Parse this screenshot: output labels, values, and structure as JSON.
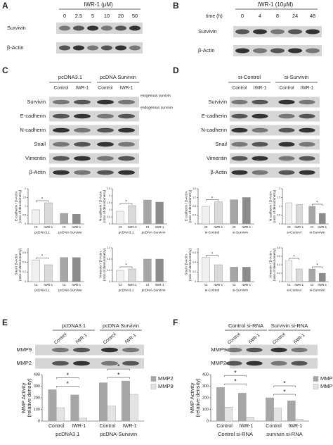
{
  "panels": {
    "A": {
      "label": "A",
      "treatment": "IWR-1 (μM)",
      "lanes": [
        "0",
        "2.5",
        "5",
        "10",
        "20",
        "50"
      ],
      "rows": [
        "Survivin",
        "β-Actin"
      ]
    },
    "B": {
      "label": "B",
      "treatment": "IWR-1 (10μM)",
      "axis_label": "time (h)",
      "lanes": [
        "0",
        "4",
        "8",
        "24",
        "48"
      ],
      "rows": [
        "Survivin",
        "β-Actin"
      ]
    },
    "C": {
      "label": "C",
      "groups": [
        "pcDNA3.1",
        "pcDNA Survivin"
      ],
      "lanes": [
        "Control",
        "IWR-1",
        "Control",
        "IWR-1"
      ],
      "rows": [
        "Survivin",
        "E-cadherin",
        "N-cadherin",
        "Snail",
        "Vimentin",
        "β-Actin"
      ],
      "annotations": [
        "exogenous survivin",
        "endogenous survivin"
      ]
    },
    "D": {
      "label": "D",
      "groups": [
        "si-Control",
        "si-Survivin"
      ],
      "lanes": [
        "Control",
        "IWR-1",
        "Control",
        "IWR-1"
      ],
      "rows": [
        "Survivin",
        "E-cadherin",
        "N-cadherin",
        "Snail",
        "Vimentin",
        "β-Actin"
      ]
    },
    "E": {
      "label": "E",
      "groups": [
        "pcDNA3.1",
        "pcDNA Survivin"
      ],
      "lanes": [
        "Control",
        "IWR-1",
        "Control",
        "IWR-1"
      ],
      "rows": [
        "MMP9",
        "MMP2"
      ]
    },
    "F": {
      "label": "F",
      "groups": [
        "Control si-RNA",
        "Survivin si-RNA"
      ],
      "lanes": [
        "Control",
        "IWR-1",
        "Control",
        "IWR-1"
      ],
      "rows": [
        "MMP9",
        "MMP2"
      ]
    }
  },
  "chart_data": [
    {
      "type": "bar",
      "ylabel": [
        "E-cadherin / β-Actin",
        "(ratio of densitometry)"
      ],
      "categories": [
        "Ct",
        "IWR-1",
        "Ct",
        "IWR-1"
      ],
      "groups": [
        "pcDNA3.1",
        "pcDNA-Survivin"
      ],
      "values": [
        0.8,
        1.2,
        0.6,
        0.55
      ],
      "colors": [
        "#f0f0f0",
        "#d9d9d9",
        "#a6a6a6",
        "#8c8c8c"
      ],
      "ylim": [
        0,
        2
      ],
      "yticks": [
        0,
        0.5,
        1,
        1.5,
        2
      ],
      "brackets": [
        [
          0,
          1
        ]
      ],
      "annotation": "*"
    },
    {
      "type": "bar",
      "ylabel": [
        "N-cadherin / β-Actin",
        "(ratio of densitometry)"
      ],
      "categories": [
        "Ct",
        "IWR-1",
        "Ct",
        "IWR-1"
      ],
      "groups": [
        "pcDNA3.1",
        "pcDNA-Survivin"
      ],
      "values": [
        0.9,
        1.3,
        1.7,
        1.55
      ],
      "colors": [
        "#f0f0f0",
        "#d9d9d9",
        "#a6a6a6",
        "#8c8c8c"
      ],
      "ylim": [
        0,
        2.5
      ],
      "yticks": [
        0,
        0.5,
        1,
        1.5,
        2,
        2.5
      ],
      "brackets": [
        [
          0,
          1
        ]
      ],
      "annotation": "*"
    },
    {
      "type": "bar",
      "ylabel": [
        "Snail / β-Actin",
        "(ratio of densitometry)"
      ],
      "categories": [
        "Ct",
        "IWR-1",
        "Ct",
        "IWR-1"
      ],
      "groups": [
        "pcDNA3.1",
        "pcDNA-Survivin"
      ],
      "values": [
        0.45,
        0.35,
        0.5,
        0.5
      ],
      "colors": [
        "#f0f0f0",
        "#d9d9d9",
        "#a6a6a6",
        "#8c8c8c"
      ],
      "ylim": [
        0,
        0.7
      ],
      "yticks": [
        0,
        0.2,
        0.4,
        0.6
      ],
      "brackets": [
        [
          0,
          1
        ]
      ],
      "annotation": "*"
    },
    {
      "type": "bar",
      "ylabel": [
        "Vimentin / β-Actin",
        "(ratio of densitometry)"
      ],
      "categories": [
        "Ct",
        "IWR-1",
        "Ct",
        "IWR-1"
      ],
      "groups": [
        "pcDNA3.1",
        "pcDNA-Survivin"
      ],
      "values": [
        0.4,
        0.45,
        0.8,
        0.8
      ],
      "colors": [
        "#f0f0f0",
        "#d9d9d9",
        "#a6a6a6",
        "#8c8c8c"
      ],
      "ylim": [
        0,
        1.2
      ],
      "yticks": [
        0,
        0.4,
        0.8,
        1.2
      ],
      "brackets": [
        [
          0,
          1
        ]
      ],
      "annotation": "*"
    },
    {
      "type": "bar",
      "ylabel": [
        "E-cadherin / β-Actin",
        "(ratio of densitometry)"
      ],
      "categories": [
        "Ct",
        "IWR-1",
        "Ct",
        "IWR-1"
      ],
      "groups": [
        "si-Control",
        "si-Survivin"
      ],
      "values": [
        0.8,
        1.0,
        1.1,
        1.2
      ],
      "colors": [
        "#f0f0f0",
        "#d9d9d9",
        "#a6a6a6",
        "#8c8c8c"
      ],
      "ylim": [
        0,
        1.6
      ],
      "yticks": [
        0,
        0.4,
        0.8,
        1.2,
        1.6
      ],
      "brackets": [
        [
          0,
          1
        ]
      ],
      "annotation": "*"
    },
    {
      "type": "bar",
      "ylabel": [
        "N cadherin / β-Actin",
        "(ratio of densitometry)"
      ],
      "categories": [
        "Ct",
        "IWR-1",
        "Ct",
        "IWR-1"
      ],
      "groups": [
        "si-Control",
        "si-Survivin"
      ],
      "values": [
        1.2,
        1.1,
        1.0,
        0.6
      ],
      "colors": [
        "#f0f0f0",
        "#d9d9d9",
        "#a6a6a6",
        "#8c8c8c"
      ],
      "ylim": [
        0,
        2
      ],
      "yticks": [
        0,
        0.5,
        1,
        1.5,
        2
      ],
      "brackets": [
        [
          2,
          3
        ]
      ],
      "annotation": "*"
    },
    {
      "type": "bar",
      "ylabel": [
        "Snail / β-Actin",
        "(ratio of densitometry)"
      ],
      "categories": [
        "Ct",
        "IWR-1",
        "Ct",
        "IWR-1"
      ],
      "groups": [
        "si-Control",
        "si-Survivin"
      ],
      "values": [
        0.5,
        0.35,
        0.3,
        0.3
      ],
      "colors": [
        "#f0f0f0",
        "#d9d9d9",
        "#a6a6a6",
        "#8c8c8c"
      ],
      "ylim": [
        0,
        0.7
      ],
      "yticks": [
        0,
        0.2,
        0.4,
        0.6
      ],
      "brackets": [
        [
          0,
          1
        ]
      ],
      "annotation": "*"
    },
    {
      "type": "bar",
      "ylabel": [
        "Vimentin / β-Actin",
        "(ratio of densitometry)"
      ],
      "categories": [
        "Ct",
        "IWR-1",
        "Ct",
        "IWR-1"
      ],
      "groups": [
        "si-Control",
        "si-Survivin"
      ],
      "values": [
        0.5,
        0.3,
        0.3,
        0.2
      ],
      "colors": [
        "#f0f0f0",
        "#d9d9d9",
        "#a6a6a6",
        "#8c8c8c"
      ],
      "ylim": [
        0,
        0.8
      ],
      "yticks": [
        0,
        0.2,
        0.4,
        0.6,
        0.8
      ],
      "brackets": [
        [
          0,
          1
        ],
        [
          2,
          3
        ]
      ],
      "annotation": "*"
    },
    {
      "type": "grouped_bar",
      "ylabel": [
        "MMP Activity",
        "(relative density)"
      ],
      "categories": [
        "Control",
        "IWR-1",
        "Control",
        "IWR-1"
      ],
      "groups": [
        "pcDNA3.1",
        "pcDNA-Survivin"
      ],
      "series": [
        {
          "name": "MMP2",
          "color": "#a6a6a6",
          "values": [
            270,
            225,
            330,
            345
          ]
        },
        {
          "name": "MMP9",
          "color": "#e3e3e3",
          "values": [
            115,
            25,
            130,
            230
          ]
        }
      ],
      "ylim": [
        0,
        400
      ],
      "yticks": [
        0,
        100,
        200,
        300,
        400
      ],
      "brackets": [
        [
          0,
          1
        ],
        [
          0,
          1
        ],
        [
          2,
          3
        ],
        [
          2,
          3
        ]
      ],
      "annotation": "*",
      "legend": "right"
    },
    {
      "type": "grouped_bar",
      "ylabel": [
        "MMP Activity",
        "(relative density)"
      ],
      "categories": [
        "Control",
        "IWR-1",
        "Control",
        "IWR-1"
      ],
      "groups": [
        "Control si-RNA",
        "survivin si-RNA"
      ],
      "series": [
        {
          "name": "MMP2",
          "color": "#a6a6a6",
          "values": [
            290,
            240,
            200,
            175
          ]
        },
        {
          "name": "MMP9",
          "color": "#e3e3e3",
          "values": [
            120,
            35,
            110,
            15
          ]
        }
      ],
      "ylim": [
        0,
        400
      ],
      "yticks": [
        0,
        100,
        200,
        300,
        400
      ],
      "brackets": [
        [
          0,
          1
        ],
        [
          0,
          1
        ],
        [
          2,
          3
        ],
        [
          2,
          3
        ]
      ],
      "annotation": "*",
      "legend": "right"
    }
  ]
}
